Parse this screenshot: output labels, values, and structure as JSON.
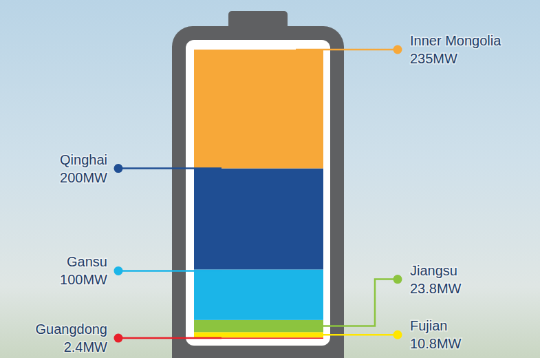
{
  "chart_data": {
    "type": "bar",
    "stacked": true,
    "data_labels": true,
    "tick_labels": false,
    "categories": [
      null
    ],
    "series": [
      {
        "name": "Guangdong",
        "color": "#e8202a",
        "values": [
          2.4
        ],
        "value_labels": [
          "2.4MW"
        ]
      },
      {
        "name": "Fujian",
        "color": "#ffe600",
        "values": [
          10.8
        ],
        "value_labels": [
          "10.8MW"
        ]
      },
      {
        "name": "Jiangsu",
        "color": "#8cc43f",
        "values": [
          23.8
        ],
        "value_labels": [
          "23.8MW"
        ]
      },
      {
        "name": "Gansu",
        "color": "#1bb5e8",
        "values": [
          100
        ],
        "value_labels": [
          "100MW"
        ]
      },
      {
        "name": "Qinghai",
        "color": "#1f4e93",
        "values": [
          200
        ],
        "value_labels": [
          "200MW"
        ]
      },
      {
        "name": "Inner Mongolia",
        "color": "#f7a839",
        "values": [
          235
        ],
        "value_labels": [
          "235MW"
        ]
      }
    ]
  }
}
